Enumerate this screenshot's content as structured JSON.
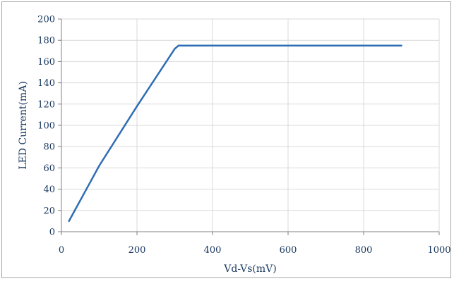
{
  "chart_data": {
    "type": "line",
    "title": "",
    "xlabel": "Vd-Vs(mV)",
    "ylabel": "LED Current(mA)",
    "xlim": [
      0,
      1000
    ],
    "ylim": [
      0,
      200
    ],
    "xticks": [
      "0",
      "200",
      "400",
      "600",
      "800",
      "1000"
    ],
    "yticks": [
      "0",
      "20",
      "40",
      "60",
      "80",
      "100",
      "120",
      "140",
      "160",
      "180",
      "200"
    ],
    "grid": true,
    "legend": "none",
    "series": [
      {
        "color": "#2e6db4",
        "x": [
          20,
          100,
          200,
          300,
          310,
          900
        ],
        "y": [
          10,
          62,
          118,
          172,
          175,
          175
        ]
      }
    ]
  }
}
